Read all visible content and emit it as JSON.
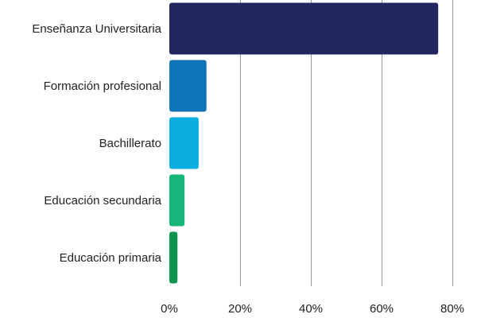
{
  "chart_data": {
    "type": "bar",
    "orientation": "horizontal",
    "categories": [
      "Enseñanza Universitaria",
      "Formación profesional",
      "Bachillerato",
      "Educación secundaria",
      "Educación primaria"
    ],
    "values": [
      76,
      10.5,
      8.3,
      4.3,
      2.3
    ],
    "colors": [
      "#22265e",
      "#0f74b8",
      "#0aaee0",
      "#17b57a",
      "#0f9450"
    ],
    "xlim": [
      0,
      80
    ],
    "xticks": [
      0,
      20,
      40,
      60,
      80
    ],
    "xtick_labels": [
      "0%",
      "20%",
      "40%",
      "60%",
      "80%"
    ],
    "grid": "vertical",
    "legend": "none",
    "title": "",
    "xlabel": "",
    "ylabel": ""
  }
}
